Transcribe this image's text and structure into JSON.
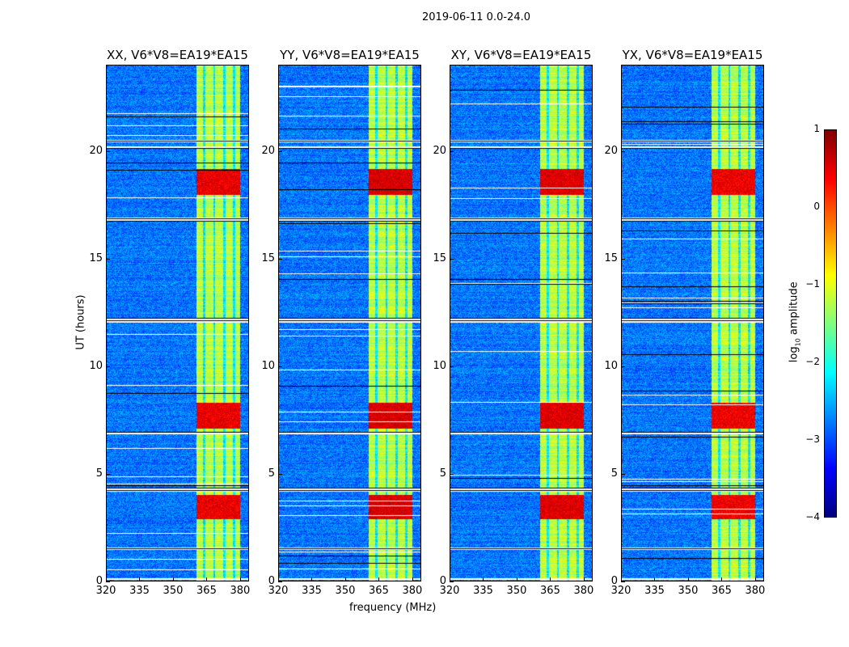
{
  "chart_data": {
    "type": "heatmap",
    "title": "2019-06-11 0.0-24.0",
    "xlabel": "frequency (MHz)",
    "ylabel": "UT (hours)",
    "xlim": [
      320,
      384
    ],
    "ylim": [
      0,
      24
    ],
    "xticks": [
      "320",
      "335",
      "350",
      "365",
      "380"
    ],
    "xtick_values": [
      320,
      335,
      350,
      365,
      380
    ],
    "yticks": [
      "0",
      "5",
      "10",
      "15",
      "20"
    ],
    "ytick_values": [
      0,
      5,
      10,
      15,
      20
    ],
    "panels": [
      {
        "title": "XX, V6*V8=EA19*EA15",
        "hot_strength": 0.6
      },
      {
        "title": "YY, V6*V8=EA19*EA15",
        "hot_strength": 0.9
      },
      {
        "title": "XY, V6*V8=EA19*EA15",
        "hot_strength": 0.8
      },
      {
        "title": "YX, V6*V8=EA19*EA15",
        "hot_strength": 0.5
      }
    ],
    "background_level": -2.8,
    "band": {
      "freq_range": [
        360.5,
        380
      ],
      "level": -1.2,
      "subband_edges": [
        364,
        368.5,
        373,
        377.5
      ]
    },
    "hot_intervals_hours": [
      [
        2.9,
        4.0
      ],
      [
        7.1,
        8.3
      ],
      [
        18.0,
        19.2
      ]
    ],
    "hot_level": 0.3,
    "flagged_rows_hours": [
      0.1,
      1.5,
      4.2,
      4.3,
      6.9,
      12.1,
      12.2,
      16.8,
      16.9,
      20.2,
      20.5
    ],
    "colorbar": {
      "label": "log10 amplitude",
      "label_main": "log",
      "label_sub": "10",
      "label_rest": " amplitude",
      "range": [
        -4,
        1
      ],
      "ticks": [
        "1",
        "0",
        "−1",
        "−2",
        "−3",
        "−4"
      ],
      "tick_values": [
        1,
        0,
        -1,
        -2,
        -3,
        -4
      ],
      "colormap": "jet"
    }
  }
}
